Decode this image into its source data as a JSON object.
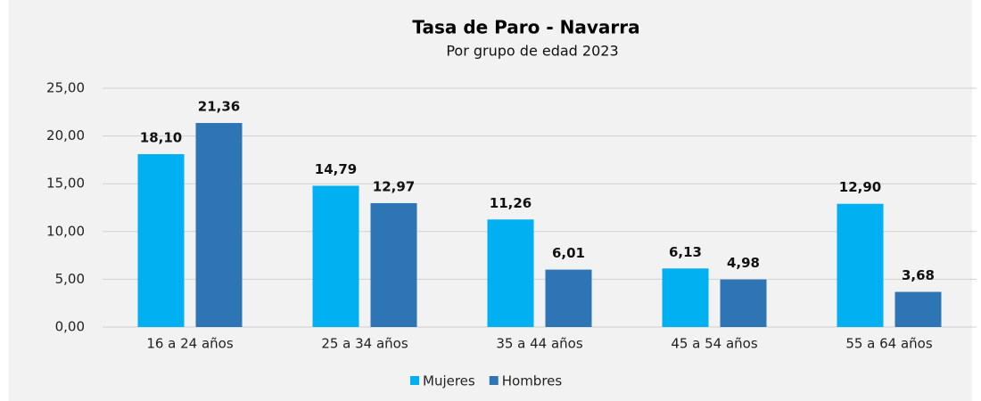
{
  "chart_data": {
    "type": "bar",
    "title": "Tasa de Paro - Navarra",
    "subtitle": "Por grupo de edad 2023",
    "categories": [
      "16 a 24 años",
      "25 a 34 años",
      "35 a 44 años",
      "45 a 54 años",
      "55 a 64 años"
    ],
    "series": [
      {
        "name": "Mujeres",
        "color": "#00b0f0",
        "values": [
          18.1,
          14.79,
          11.26,
          6.13,
          12.9
        ],
        "value_labels": [
          "18,10",
          "14,79",
          "11,26",
          "6,13",
          "12,90"
        ]
      },
      {
        "name": "Hombres",
        "color": "#2e75b6",
        "values": [
          21.36,
          12.97,
          6.01,
          4.98,
          3.68
        ],
        "value_labels": [
          "21,36",
          "12,97",
          "6,01",
          "4,98",
          "3,68"
        ]
      }
    ],
    "ylim": [
      0,
      25
    ],
    "yticks": [
      {
        "value": 0,
        "label": "0,00"
      },
      {
        "value": 5,
        "label": "5,00"
      },
      {
        "value": 10,
        "label": "10,00"
      },
      {
        "value": 15,
        "label": "15,00"
      },
      {
        "value": 20,
        "label": "20,00"
      },
      {
        "value": 25,
        "label": "25,00"
      }
    ],
    "grid": true,
    "legend": "bottom"
  }
}
